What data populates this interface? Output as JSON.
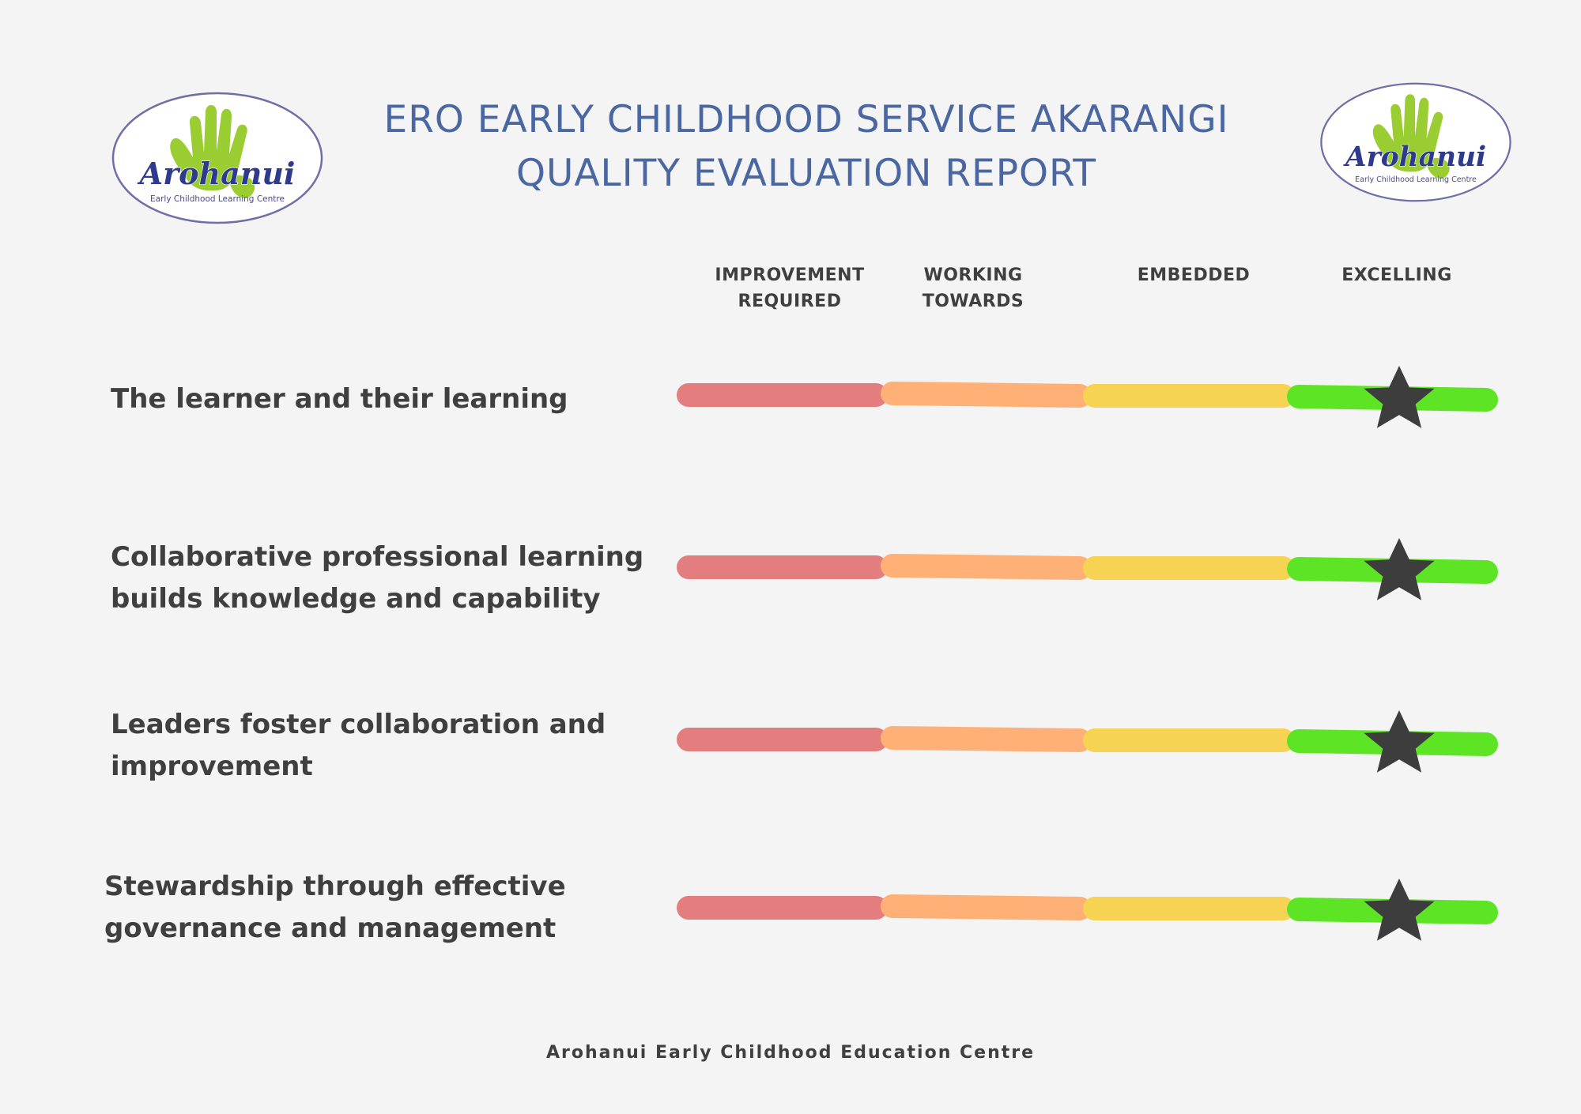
{
  "header": {
    "title_line1": "ERO EARLY CHILDHOOD SERVICE AKARANGI",
    "title_line2": "QUALITY EVALUATION REPORT"
  },
  "logo": {
    "name": "Arohanui",
    "subtitle": "Early Childhood Learning Centre"
  },
  "scale_levels": [
    {
      "line1": "IMPROVEMENT",
      "line2": "REQUIRED",
      "color": "#e47e7e"
    },
    {
      "line1": "WORKING",
      "line2": "TOWARDS",
      "color": "#ffb077"
    },
    {
      "line1": "EMBEDDED",
      "line2": "",
      "color": "#f7d354"
    },
    {
      "line1": "EXCELLING",
      "line2": "",
      "color": "#5de525"
    }
  ],
  "criteria": [
    {
      "line1": "The learner and their learning",
      "line2": "",
      "rating": "EXCELLING"
    },
    {
      "line1": "Collaborative professional learning",
      "line2": "builds knowledge and capability",
      "rating": "EXCELLING"
    },
    {
      "line1": "Leaders foster collaboration and",
      "line2": "improvement",
      "rating": "EXCELLING"
    },
    {
      "line1": "Stewardship through effective",
      "line2": "governance and management",
      "rating": "EXCELLING"
    }
  ],
  "colors": {
    "title": "#4a67a1",
    "text": "#3f3f3f",
    "star": "#3d3d3d",
    "logo_hand": "#9acd32",
    "logo_text": "#2e3a8c"
  },
  "footer": {
    "text": "Arohanui Early Childhood Education Centre"
  }
}
